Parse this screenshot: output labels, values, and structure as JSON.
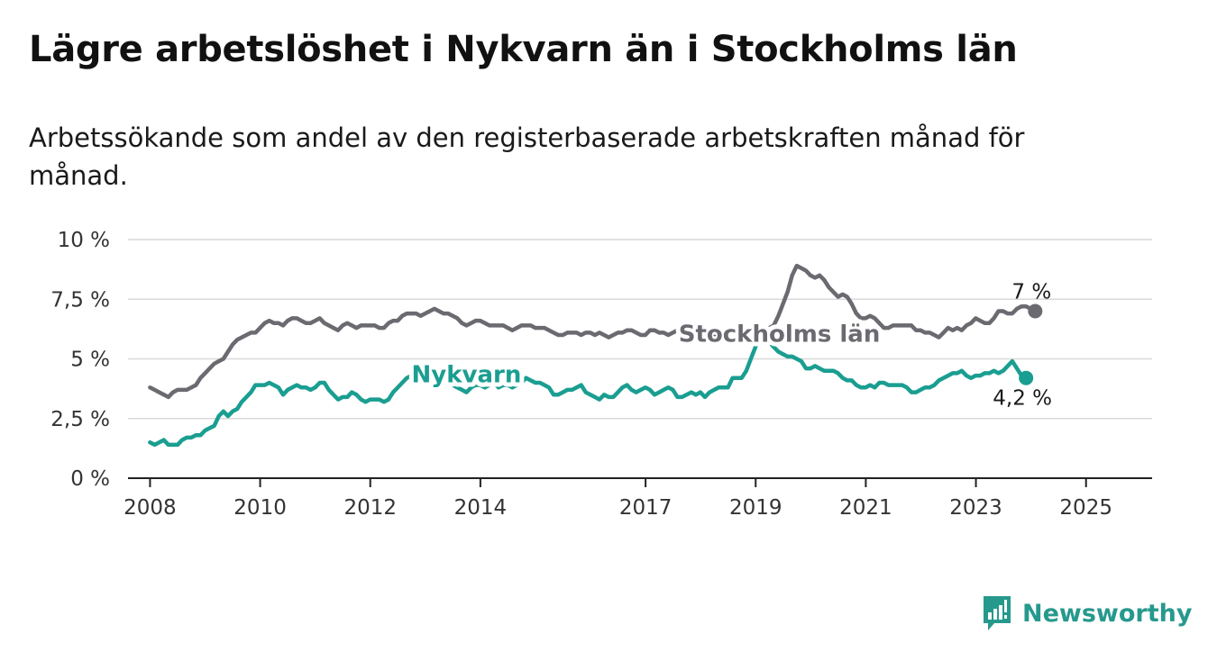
{
  "title": "Lägre arbetslöshet i Nykvarn än i Stockholms län",
  "subtitle": "Arbetssökande som andel av den registerbaserade arbetskraften månad för månad.",
  "brand": {
    "name": "Newsworthy",
    "color": "#26998d",
    "icon": "bar-chart-exclamation-icon"
  },
  "chart_data": {
    "type": "line",
    "x_start": 2008.0,
    "x_step": 0.0833,
    "xlim": [
      2007.6,
      2026.2
    ],
    "ylim": [
      0,
      10
    ],
    "y_ticks": [
      0,
      2.5,
      5,
      7.5,
      10
    ],
    "y_tick_labels": [
      "0 %",
      "2,5 %",
      "5 %",
      "7,5 %",
      "10 %"
    ],
    "x_ticks": [
      2008,
      2010,
      2012,
      2014,
      2017,
      2019,
      2021,
      2023,
      2025
    ],
    "x_tick_labels": [
      "2008",
      "2010",
      "2012",
      "2014",
      "2017",
      "2019",
      "2021",
      "2023",
      "2025"
    ],
    "grid": true,
    "legend": "inline labels",
    "series": [
      {
        "name": "Stockholms län",
        "color": "#6b6a70",
        "end_label": "7 %",
        "values": [
          3.8,
          3.7,
          3.6,
          3.5,
          3.4,
          3.6,
          3.7,
          3.7,
          3.7,
          3.8,
          3.9,
          4.2,
          4.4,
          4.6,
          4.8,
          4.9,
          5.0,
          5.3,
          5.6,
          5.8,
          5.9,
          6.0,
          6.1,
          6.1,
          6.3,
          6.5,
          6.6,
          6.5,
          6.5,
          6.4,
          6.6,
          6.7,
          6.7,
          6.6,
          6.5,
          6.5,
          6.6,
          6.7,
          6.5,
          6.4,
          6.3,
          6.2,
          6.4,
          6.5,
          6.4,
          6.3,
          6.4,
          6.4,
          6.4,
          6.4,
          6.3,
          6.3,
          6.5,
          6.6,
          6.6,
          6.8,
          6.9,
          6.9,
          6.9,
          6.8,
          6.9,
          7.0,
          7.1,
          7.0,
          6.9,
          6.9,
          6.8,
          6.7,
          6.5,
          6.4,
          6.5,
          6.6,
          6.6,
          6.5,
          6.4,
          6.4,
          6.4,
          6.4,
          6.3,
          6.2,
          6.3,
          6.4,
          6.4,
          6.4,
          6.3,
          6.3,
          6.3,
          6.2,
          6.1,
          6.0,
          6.0,
          6.1,
          6.1,
          6.1,
          6.0,
          6.1,
          6.1,
          6.0,
          6.1,
          6.0,
          5.9,
          6.0,
          6.1,
          6.1,
          6.2,
          6.2,
          6.1,
          6.0,
          6.0,
          6.2,
          6.2,
          6.1,
          6.1,
          6.0,
          6.1,
          6.2,
          6.2,
          6.1,
          6.0,
          6.1,
          6.0,
          6.1,
          6.1,
          6.0,
          6.0,
          6.1,
          6.2,
          6.1,
          6.1,
          6.0,
          6.1,
          6.1,
          6.2,
          6.1,
          6.2,
          6.3,
          6.4,
          6.8,
          7.3,
          7.8,
          8.5,
          8.9,
          8.8,
          8.7,
          8.5,
          8.4,
          8.5,
          8.3,
          8.0,
          7.8,
          7.6,
          7.7,
          7.6,
          7.3,
          6.9,
          6.7,
          6.7,
          6.8,
          6.7,
          6.5,
          6.3,
          6.3,
          6.4,
          6.4,
          6.4,
          6.4,
          6.4,
          6.2,
          6.2,
          6.1,
          6.1,
          6.0,
          5.9,
          6.1,
          6.3,
          6.2,
          6.3,
          6.2,
          6.4,
          6.5,
          6.7,
          6.6,
          6.5,
          6.5,
          6.7,
          7.0,
          7.0,
          6.9,
          6.9,
          7.1,
          7.2,
          7.2,
          7.1,
          7.0
        ]
      },
      {
        "name": "Nykvarn",
        "color": "#1a9e91",
        "end_label": "4,2 %",
        "values": [
          1.5,
          1.4,
          1.5,
          1.6,
          1.4,
          1.4,
          1.4,
          1.6,
          1.7,
          1.7,
          1.8,
          1.8,
          2.0,
          2.1,
          2.2,
          2.6,
          2.8,
          2.6,
          2.8,
          2.9,
          3.2,
          3.4,
          3.6,
          3.9,
          3.9,
          3.9,
          4.0,
          3.9,
          3.8,
          3.5,
          3.7,
          3.8,
          3.9,
          3.8,
          3.8,
          3.7,
          3.8,
          4.0,
          4.0,
          3.7,
          3.5,
          3.3,
          3.4,
          3.4,
          3.6,
          3.5,
          3.3,
          3.2,
          3.3,
          3.3,
          3.3,
          3.2,
          3.3,
          3.6,
          3.8,
          4.0,
          4.2,
          4.3,
          4.4,
          4.3,
          4.2,
          4.2,
          4.1,
          4.1,
          4.0,
          4.0,
          3.9,
          3.8,
          3.7,
          3.6,
          3.8,
          3.9,
          3.9,
          3.8,
          3.9,
          4.0,
          3.8,
          3.9,
          3.9,
          3.8,
          3.9,
          4.0,
          4.2,
          4.1,
          4.0,
          4.0,
          3.9,
          3.8,
          3.5,
          3.5,
          3.6,
          3.7,
          3.7,
          3.8,
          3.9,
          3.6,
          3.5,
          3.4,
          3.3,
          3.5,
          3.4,
          3.4,
          3.6,
          3.8,
          3.9,
          3.7,
          3.6,
          3.7,
          3.8,
          3.7,
          3.5,
          3.6,
          3.7,
          3.8,
          3.7,
          3.4,
          3.4,
          3.5,
          3.6,
          3.5,
          3.6,
          3.4,
          3.6,
          3.7,
          3.8,
          3.8,
          3.8,
          4.2,
          4.2,
          4.2,
          4.5,
          5.0,
          5.5,
          6.0,
          6.0,
          5.7,
          5.5,
          5.3,
          5.2,
          5.1,
          5.1,
          5.0,
          4.9,
          4.6,
          4.6,
          4.7,
          4.6,
          4.5,
          4.5,
          4.5,
          4.4,
          4.2,
          4.1,
          4.1,
          3.9,
          3.8,
          3.8,
          3.9,
          3.8,
          4.0,
          4.0,
          3.9,
          3.9,
          3.9,
          3.9,
          3.8,
          3.6,
          3.6,
          3.7,
          3.8,
          3.8,
          3.9,
          4.1,
          4.2,
          4.3,
          4.4,
          4.4,
          4.5,
          4.3,
          4.2,
          4.3,
          4.3,
          4.4,
          4.4,
          4.5,
          4.4,
          4.5,
          4.7,
          4.9,
          4.6,
          4.3,
          4.2
        ]
      }
    ]
  }
}
